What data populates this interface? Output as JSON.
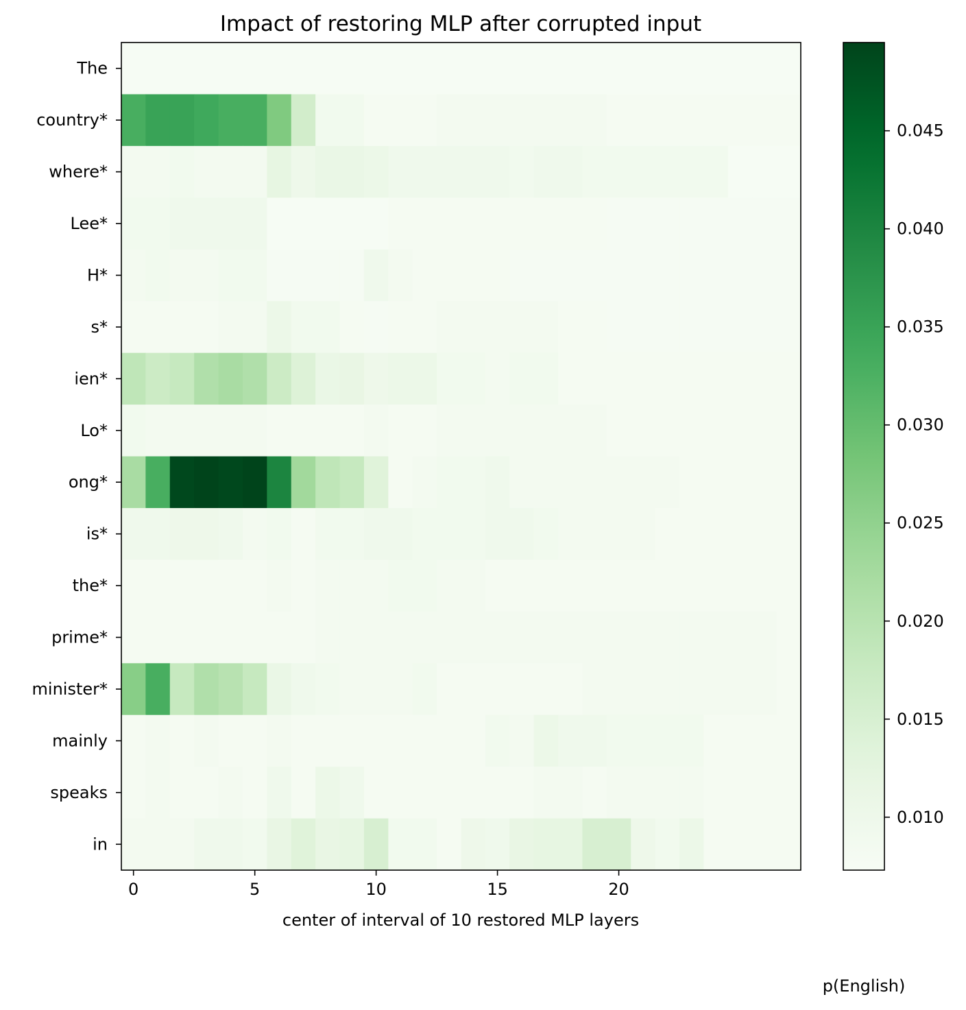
{
  "chart_data": {
    "type": "heatmap",
    "title": "Impact of restoring MLP after corrupted input",
    "xlabel": "center of interval of 10 restored MLP layers",
    "ylabel": "",
    "colorbar_label": "p(English)",
    "colormap": "Greens",
    "x": [
      0,
      1,
      2,
      3,
      4,
      5,
      6,
      7,
      8,
      9,
      10,
      11,
      12,
      13,
      14,
      15,
      16,
      17,
      18,
      19,
      20,
      21,
      22,
      23,
      24,
      25,
      26,
      27
    ],
    "x_ticks": [
      0,
      5,
      10,
      15,
      20
    ],
    "y_labels": [
      "The",
      "country*",
      "where*",
      "Lee*",
      "H*",
      "s*",
      "ien*",
      "Lo*",
      "ong*",
      "is*",
      "the*",
      "prime*",
      "minister*",
      "mainly",
      "speaks",
      "in"
    ],
    "vmin": 0.0073,
    "vmax": 0.0495,
    "colorbar_ticks": [
      0.01,
      0.015,
      0.02,
      0.025,
      0.03,
      0.035,
      0.04,
      0.045
    ],
    "values": [
      [
        0.0075,
        0.0075,
        0.0075,
        0.0075,
        0.0075,
        0.0075,
        0.0075,
        0.0075,
        0.0075,
        0.0075,
        0.0075,
        0.0075,
        0.0075,
        0.0075,
        0.0075,
        0.0075,
        0.0075,
        0.0075,
        0.0075,
        0.0075,
        0.0075,
        0.0075,
        0.0075,
        0.0075,
        0.0075,
        0.0075,
        0.0075,
        0.0075
      ],
      [
        0.033,
        0.035,
        0.035,
        0.034,
        0.033,
        0.033,
        0.027,
        0.016,
        0.009,
        0.009,
        0.008,
        0.008,
        0.008,
        0.0085,
        0.0085,
        0.0085,
        0.0085,
        0.0085,
        0.0085,
        0.0085,
        0.008,
        0.008,
        0.008,
        0.008,
        0.008,
        0.008,
        0.008,
        0.008
      ],
      [
        0.0085,
        0.0085,
        0.009,
        0.0085,
        0.0085,
        0.0085,
        0.012,
        0.01,
        0.011,
        0.011,
        0.0105,
        0.0095,
        0.0095,
        0.0095,
        0.0095,
        0.0095,
        0.009,
        0.0095,
        0.0095,
        0.009,
        0.009,
        0.009,
        0.009,
        0.009,
        0.009,
        0.0075,
        0.0075,
        0.0075
      ],
      [
        0.009,
        0.009,
        0.0095,
        0.0095,
        0.0095,
        0.0095,
        0.0075,
        0.0075,
        0.0075,
        0.0075,
        0.0075,
        0.008,
        0.008,
        0.008,
        0.008,
        0.008,
        0.008,
        0.008,
        0.008,
        0.008,
        0.0078,
        0.0078,
        0.0078,
        0.0078,
        0.0078,
        0.0078,
        0.0078,
        0.0078
      ],
      [
        0.0085,
        0.009,
        0.0085,
        0.0085,
        0.009,
        0.009,
        0.0078,
        0.0078,
        0.0078,
        0.0078,
        0.0095,
        0.0085,
        0.008,
        0.008,
        0.008,
        0.008,
        0.0078,
        0.0078,
        0.0078,
        0.0078,
        0.0078,
        0.0078,
        0.0078,
        0.0078,
        0.0078,
        0.0078,
        0.0078,
        0.0078
      ],
      [
        0.008,
        0.008,
        0.008,
        0.008,
        0.0085,
        0.0085,
        0.0105,
        0.009,
        0.009,
        0.008,
        0.0078,
        0.008,
        0.008,
        0.0085,
        0.0085,
        0.0085,
        0.0085,
        0.0085,
        0.008,
        0.008,
        0.0078,
        0.0078,
        0.0078,
        0.0078,
        0.0078,
        0.0078,
        0.0078,
        0.0078
      ],
      [
        0.019,
        0.017,
        0.018,
        0.021,
        0.022,
        0.021,
        0.017,
        0.014,
        0.011,
        0.0115,
        0.01,
        0.0105,
        0.0105,
        0.009,
        0.009,
        0.0085,
        0.009,
        0.009,
        0.008,
        0.008,
        0.008,
        0.008,
        0.008,
        0.008,
        0.008,
        0.008,
        0.008,
        0.008
      ],
      [
        0.009,
        0.0085,
        0.0085,
        0.0085,
        0.0085,
        0.0085,
        0.008,
        0.008,
        0.008,
        0.008,
        0.0085,
        0.008,
        0.008,
        0.0085,
        0.0085,
        0.0085,
        0.0085,
        0.0085,
        0.0085,
        0.0085,
        0.008,
        0.008,
        0.008,
        0.008,
        0.008,
        0.008,
        0.008,
        0.008
      ],
      [
        0.022,
        0.033,
        0.049,
        0.0495,
        0.049,
        0.0495,
        0.04,
        0.023,
        0.019,
        0.018,
        0.0135,
        0.008,
        0.0085,
        0.009,
        0.009,
        0.0095,
        0.0085,
        0.0085,
        0.0085,
        0.0085,
        0.0085,
        0.0085,
        0.0085,
        0.008,
        0.008,
        0.008,
        0.008,
        0.008
      ],
      [
        0.0095,
        0.0095,
        0.01,
        0.01,
        0.0095,
        0.0085,
        0.009,
        0.008,
        0.009,
        0.009,
        0.0095,
        0.0095,
        0.009,
        0.009,
        0.009,
        0.0095,
        0.0095,
        0.009,
        0.0085,
        0.0085,
        0.0085,
        0.0085,
        0.008,
        0.008,
        0.008,
        0.008,
        0.008,
        0.008
      ],
      [
        0.008,
        0.008,
        0.008,
        0.008,
        0.008,
        0.008,
        0.0085,
        0.008,
        0.0085,
        0.0085,
        0.0085,
        0.009,
        0.009,
        0.0085,
        0.0085,
        0.008,
        0.008,
        0.008,
        0.008,
        0.008,
        0.008,
        0.008,
        0.008,
        0.008,
        0.008,
        0.008,
        0.008,
        0.008
      ],
      [
        0.008,
        0.008,
        0.008,
        0.008,
        0.008,
        0.008,
        0.008,
        0.008,
        0.0085,
        0.0085,
        0.0085,
        0.0085,
        0.0085,
        0.0085,
        0.0085,
        0.0085,
        0.0085,
        0.0085,
        0.0085,
        0.0085,
        0.0085,
        0.0085,
        0.0085,
        0.0085,
        0.0085,
        0.0085,
        0.0085,
        0.008
      ],
      [
        0.026,
        0.033,
        0.018,
        0.021,
        0.02,
        0.018,
        0.011,
        0.0095,
        0.009,
        0.0085,
        0.0085,
        0.0085,
        0.009,
        0.008,
        0.008,
        0.008,
        0.008,
        0.008,
        0.008,
        0.0085,
        0.0085,
        0.0085,
        0.0085,
        0.0085,
        0.0085,
        0.0085,
        0.0085,
        0.008
      ],
      [
        0.008,
        0.0085,
        0.008,
        0.0085,
        0.008,
        0.008,
        0.0085,
        0.008,
        0.008,
        0.008,
        0.008,
        0.008,
        0.008,
        0.008,
        0.008,
        0.009,
        0.0085,
        0.0105,
        0.0095,
        0.0095,
        0.009,
        0.009,
        0.009,
        0.009,
        0.008,
        0.008,
        0.008,
        0.008
      ],
      [
        0.008,
        0.0085,
        0.008,
        0.008,
        0.0085,
        0.008,
        0.0095,
        0.008,
        0.0105,
        0.0095,
        0.008,
        0.008,
        0.008,
        0.008,
        0.008,
        0.008,
        0.008,
        0.0085,
        0.0085,
        0.008,
        0.0085,
        0.0085,
        0.0085,
        0.0085,
        0.008,
        0.008,
        0.008,
        0.008
      ],
      [
        0.0085,
        0.0085,
        0.0085,
        0.0095,
        0.0095,
        0.009,
        0.0115,
        0.0135,
        0.0115,
        0.012,
        0.015,
        0.009,
        0.009,
        0.008,
        0.01,
        0.0095,
        0.0115,
        0.012,
        0.012,
        0.015,
        0.015,
        0.01,
        0.009,
        0.0105,
        0.008,
        0.008,
        0.008,
        0.008
      ]
    ]
  }
}
